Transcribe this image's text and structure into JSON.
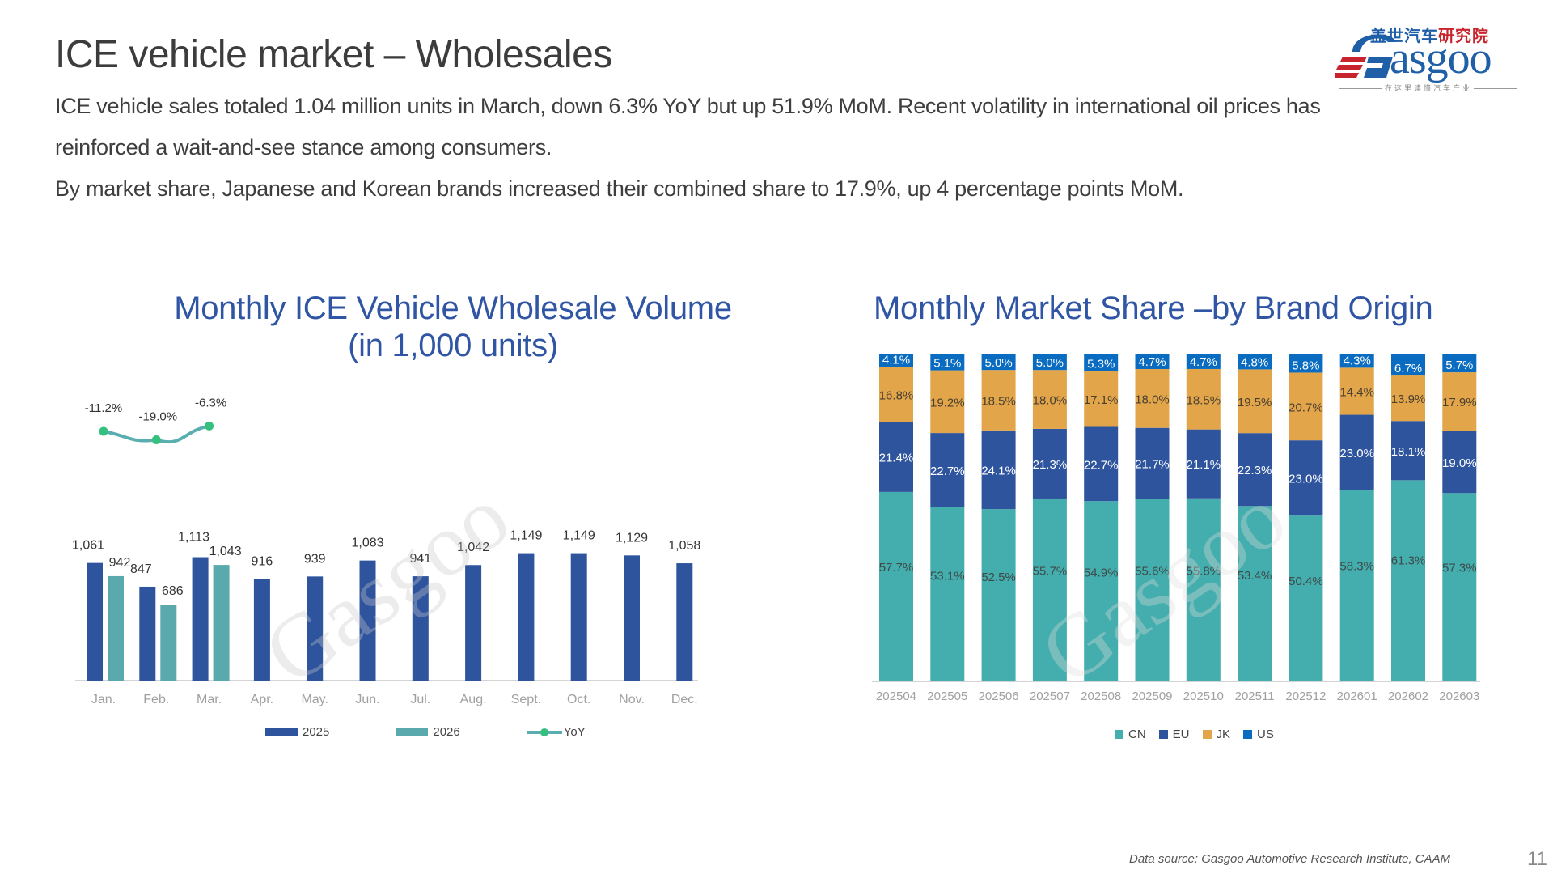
{
  "slide": {
    "title": "ICE vehicle market – Wholesales",
    "paragraphs": [
      "ICE vehicle sales totaled 1.04 million units in March, down 6.3% YoY but up 51.9% MoM. Recent volatility in international oil prices has",
      "reinforced a wait-and-see stance among consumers.",
      "By market share, Japanese and Korean brands increased their combined share to 17.9%, up 4 percentage points MoM."
    ],
    "logo": {
      "cn_blue": "盖世汽车",
      "cn_red": "研究院",
      "word": "Gasgoo",
      "tagline": "在这里读懂汽车产业"
    },
    "footer": "Data source: Gasgoo Automotive Research Institute, CAAM",
    "page_number": "11"
  },
  "colors": {
    "title_blue": "#2f55a4",
    "bar_2025": "#2e549e",
    "bar_2026": "#5aa9ac",
    "yoy_line": "#5aaeb0",
    "yoy_marker": "#36c080",
    "cn": "#44adad",
    "eu": "#2e549e",
    "jk": "#e2a54a",
    "us": "#0a6cc0"
  },
  "chart_data": [
    {
      "type": "bar",
      "title": "Monthly ICE Vehicle Wholesale Volume",
      "subtitle": "(in 1,000 units)",
      "xlabel": "",
      "ylabel": "",
      "categories": [
        "Jan.",
        "Feb.",
        "Mar.",
        "Apr.",
        "May.",
        "Jun.",
        "Jul.",
        "Aug.",
        "Sept.",
        "Oct.",
        "Nov.",
        "Dec."
      ],
      "series": [
        {
          "name": "2025",
          "kind": "bar",
          "values": [
            1061,
            847,
            1113,
            916,
            939,
            1083,
            941,
            1042,
            1149,
            1149,
            1129,
            1058
          ],
          "labels": [
            "1,061",
            "847",
            "1,113",
            "916",
            "939",
            "1,083",
            "941",
            "1,042",
            "1,149",
            "1,149",
            "1,129",
            "1,058"
          ]
        },
        {
          "name": "2026",
          "kind": "bar",
          "values": [
            942,
            686,
            1043,
            null,
            null,
            null,
            null,
            null,
            null,
            null,
            null,
            null
          ],
          "labels": [
            "942",
            "686",
            "1,043",
            "",
            "",
            "",
            "",
            "",
            "",
            "",
            "",
            ""
          ]
        },
        {
          "name": "YoY",
          "kind": "line",
          "values": [
            -11.2,
            -19.0,
            -6.3,
            null,
            null,
            null,
            null,
            null,
            null,
            null,
            null,
            null
          ],
          "labels": [
            "-11.2%",
            "-19.0%",
            "-6.3%",
            "",
            "",
            "",
            "",
            "",
            "",
            "",
            "",
            ""
          ]
        }
      ],
      "ylim": [
        0,
        1200
      ],
      "grid": false,
      "legend": "bottom",
      "legend_labels": [
        "2025",
        "2026",
        "YoY"
      ]
    },
    {
      "type": "bar",
      "stacked": true,
      "title": "Monthly Market Share –by Brand Origin",
      "xlabel": "",
      "ylabel": "",
      "categories": [
        "202504",
        "202505",
        "202506",
        "202507",
        "202508",
        "202509",
        "202510",
        "202511",
        "202512",
        "202601",
        "202602",
        "202603"
      ],
      "series": [
        {
          "name": "CN",
          "values": [
            57.7,
            53.1,
            52.5,
            55.7,
            54.9,
            55.6,
            55.8,
            53.4,
            50.4,
            58.3,
            61.3,
            57.3
          ]
        },
        {
          "name": "EU",
          "values": [
            21.4,
            22.7,
            24.1,
            21.3,
            22.7,
            21.7,
            21.1,
            22.3,
            23.0,
            23.0,
            18.1,
            19.0
          ]
        },
        {
          "name": "JK",
          "values": [
            16.8,
            19.2,
            18.5,
            18.0,
            17.1,
            18.0,
            18.5,
            19.5,
            20.7,
            14.4,
            13.9,
            17.9
          ]
        },
        {
          "name": "US",
          "values": [
            4.1,
            5.1,
            5.0,
            5.0,
            5.3,
            4.7,
            4.7,
            4.8,
            5.8,
            4.3,
            6.7,
            5.7
          ]
        }
      ],
      "ylim": [
        0,
        100
      ],
      "unit": "%",
      "grid": false,
      "legend": "bottom",
      "legend_labels": [
        "CN",
        "EU",
        "JK",
        "US"
      ]
    }
  ]
}
